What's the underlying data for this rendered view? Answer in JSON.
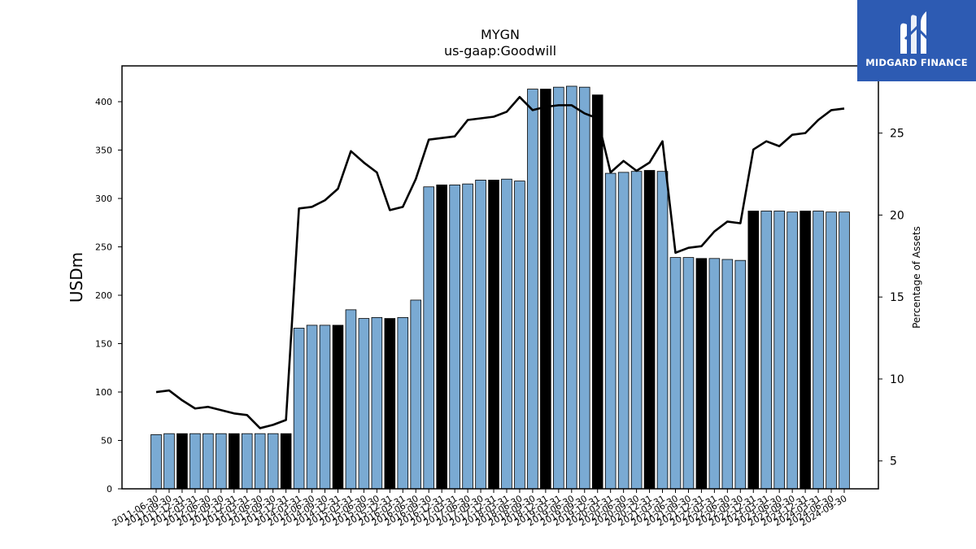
{
  "brand": {
    "name": "MIDGARD FINANCE"
  },
  "chart_data": {
    "type": "bar",
    "title": "MYGN",
    "subtitle": "us-gaap:Goodwill",
    "ylabel": "USDm",
    "y2label": "Percentage of Assets",
    "ylim": [
      0,
      437
    ],
    "y2lim": [
      3.3,
      29.1
    ],
    "yticks": [
      0,
      50,
      100,
      150,
      200,
      250,
      300,
      350,
      400
    ],
    "y2ticks": [
      5,
      10,
      15,
      20,
      25
    ],
    "colors": {
      "bar": "#7aaad3",
      "bar_highlight": "#000000",
      "line": "#000000"
    },
    "categories": [
      "2011-06-30",
      "2011-09-30",
      "2011-12-31",
      "2012-03-31",
      "2012-06-30",
      "2012-09-30",
      "2012-12-31",
      "2013-03-31",
      "2013-06-30",
      "2013-09-30",
      "2013-12-31",
      "2014-03-31",
      "2014-06-30",
      "2014-09-30",
      "2014-12-31",
      "2015-03-31",
      "2015-06-30",
      "2015-09-30",
      "2015-12-31",
      "2016-03-31",
      "2016-06-30",
      "2016-09-30",
      "2016-12-31",
      "2017-03-31",
      "2017-06-30",
      "2017-09-30",
      "2017-12-31",
      "2018-03-31",
      "2018-06-30",
      "2018-09-30",
      "2018-12-31",
      "2019-03-31",
      "2019-06-30",
      "2019-09-30",
      "2019-12-31",
      "2020-03-31",
      "2020-06-30",
      "2020-09-30",
      "2020-12-31",
      "2021-03-31",
      "2021-06-30",
      "2021-09-30",
      "2021-12-31",
      "2022-03-31",
      "2022-06-30",
      "2022-09-30",
      "2022-12-31",
      "2023-03-31",
      "2023-06-30",
      "2023-09-30",
      "2023-12-31",
      "2024-03-31",
      "2024-06-30",
      "2024-09-30"
    ],
    "series": [
      {
        "type": "bar",
        "values": [
          56,
          57,
          57,
          57,
          57,
          57,
          57,
          57,
          57,
          57,
          57,
          166,
          169,
          169,
          169,
          185,
          176,
          177,
          176,
          177,
          195,
          312,
          314,
          314,
          315,
          319,
          319,
          320,
          318,
          413,
          413,
          415,
          416,
          415,
          407,
          326,
          327,
          328,
          329,
          328,
          239,
          239,
          238,
          238,
          237,
          236,
          287,
          287,
          287,
          286,
          287,
          287,
          286,
          286
        ],
        "highlight": [
          false,
          false,
          true,
          false,
          false,
          false,
          true,
          false,
          false,
          false,
          true,
          false,
          false,
          false,
          true,
          false,
          false,
          false,
          true,
          false,
          false,
          false,
          true,
          false,
          false,
          false,
          true,
          false,
          false,
          false,
          true,
          false,
          false,
          false,
          true,
          false,
          false,
          false,
          true,
          false,
          false,
          false,
          true,
          false,
          false,
          false,
          true,
          false,
          false,
          false,
          true,
          false,
          false,
          false
        ]
      },
      {
        "type": "line",
        "axis": "right",
        "values": [
          9.2,
          9.3,
          8.7,
          8.2,
          8.3,
          8.1,
          7.9,
          7.8,
          7.0,
          7.2,
          7.5,
          20.4,
          20.5,
          20.9,
          21.6,
          23.9,
          23.2,
          22.6,
          20.3,
          20.5,
          22.2,
          24.6,
          24.7,
          24.8,
          25.8,
          25.9,
          26.0,
          26.3,
          27.2,
          26.4,
          26.6,
          26.7,
          26.7,
          26.2,
          25.9,
          22.6,
          23.3,
          22.7,
          23.2,
          24.5,
          17.7,
          18.0,
          18.1,
          19.0,
          19.6,
          19.5,
          24.0,
          24.5,
          24.2,
          24.9,
          25.0,
          25.8,
          26.4,
          26.5
        ]
      }
    ]
  }
}
